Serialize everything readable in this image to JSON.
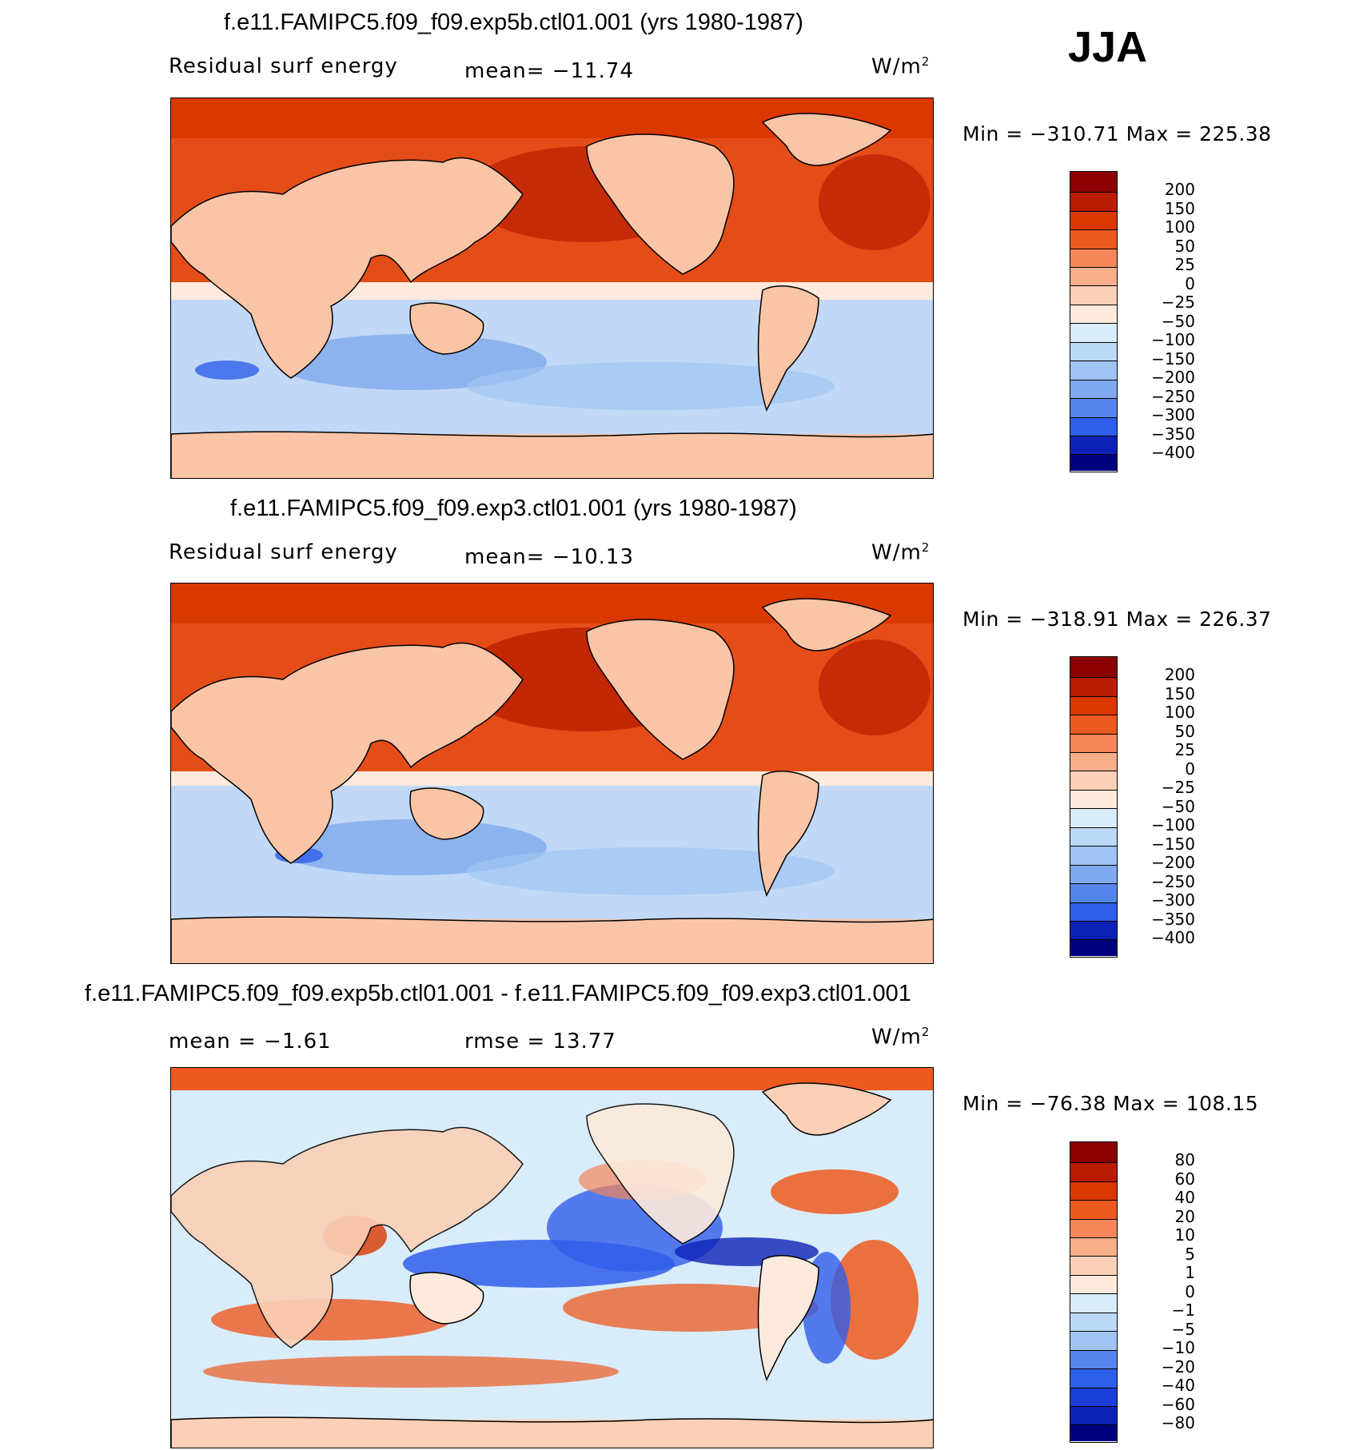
{
  "season": "JJA",
  "colors": {
    "warm": [
      "#8b0000",
      "#b81c00",
      "#d93800",
      "#ec5a1f",
      "#f4865a",
      "#f8ad8b",
      "#fbd0b6",
      "#fdeadc"
    ],
    "cool": [
      "#d9ecfa",
      "#bcd9f6",
      "#a0c4f2",
      "#7fa9ee",
      "#5585ea",
      "#2f5eea",
      "#1a3fd6",
      "#0c22b6",
      "#00007f"
    ],
    "land": "#f9c5a6",
    "ocean_pos": "#e44d17",
    "ocean_neg": "#c1d9f6"
  },
  "panels": [
    {
      "title": "f.e11.FAMIPC5.f09_f09.exp5b.ctl01.001 (yrs 1980-1987)",
      "left_label": "Residual surf energy",
      "center_label": "mean=  −11.74",
      "units": "W/m",
      "units_sup": "2",
      "minmax": "Min = −310.71 Max = 225.38",
      "colorbar_labels": [
        "200",
        "150",
        "100",
        "50",
        "25",
        "0",
        "−25",
        "−50",
        "−100",
        "−150",
        "−200",
        "−250",
        "−300",
        "−350",
        "−400"
      ]
    },
    {
      "title": "f.e11.FAMIPC5.f09_f09.exp3.ctl01.001 (yrs 1980-1987)",
      "left_label": "Residual surf energy",
      "center_label": "mean=  −10.13",
      "units": "W/m",
      "units_sup": "2",
      "minmax": "Min = −318.91 Max = 226.37",
      "colorbar_labels": [
        "200",
        "150",
        "100",
        "50",
        "25",
        "0",
        "−25",
        "−50",
        "−100",
        "−150",
        "−200",
        "−250",
        "−300",
        "−350",
        "−400"
      ]
    },
    {
      "title": "f.e11.FAMIPC5.f09_f09.exp5b.ctl01.001 - f.e11.FAMIPC5.f09_f09.exp3.ctl01.001",
      "left_label": "mean =   −1.61",
      "center_label": "rmse =   13.77",
      "units": "W/m",
      "units_sup": "2",
      "minmax": "Min = −76.38 Max = 108.15",
      "colorbar_labels": [
        "80",
        "60",
        "40",
        "20",
        "10",
        "5",
        "1",
        "0",
        "−1",
        "−5",
        "−10",
        "−20",
        "−40",
        "−60",
        "−80"
      ]
    }
  ]
}
